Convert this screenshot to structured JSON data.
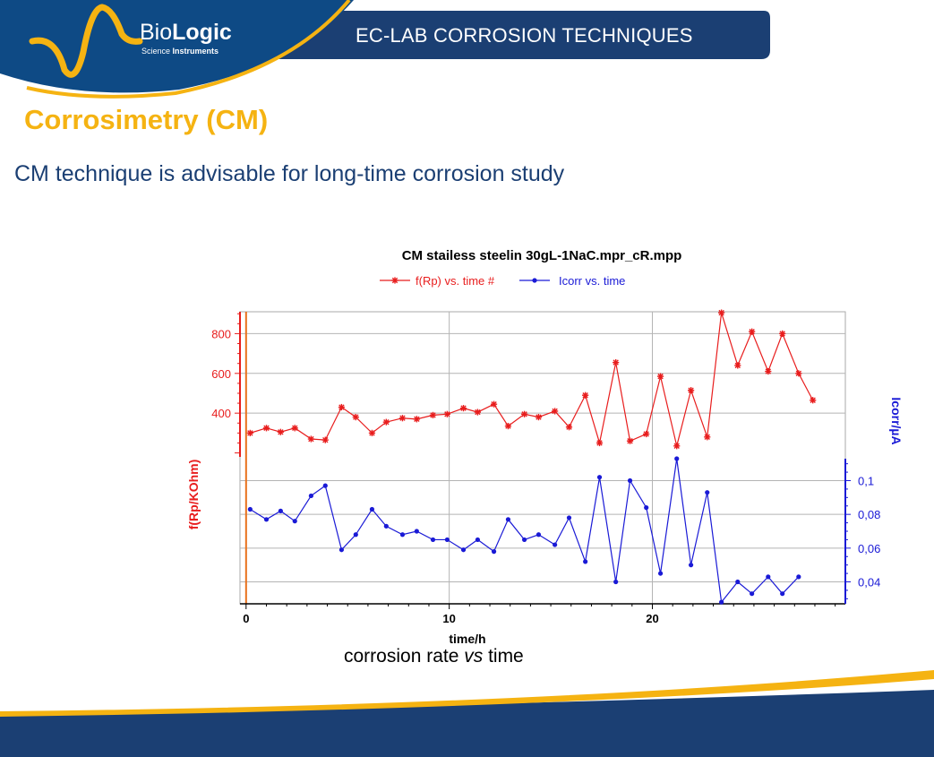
{
  "header": {
    "brand_name_part1": "Bio",
    "brand_name_part2": "Logic",
    "brand_sub_part1": "Science ",
    "brand_sub_part2": "Instruments",
    "title": "EC-LAB CORROSION TECHNIQUES"
  },
  "slide": {
    "title": "Corrosimetry (CM)",
    "subtitle": "CM technique is advisable for long-time corrosion study",
    "caption_part1": "corrosion rate ",
    "caption_part2": "vs",
    "caption_part3": " time"
  },
  "colors": {
    "navy": "#1b3f73",
    "brand_blue": "#0e4a85",
    "accent_yellow": "#f5b312",
    "series_red": "#e81d1d",
    "series_blue": "#1a1ad6",
    "axis_orange": "#e8711c"
  },
  "chart_data": {
    "type": "line",
    "title": "CM stailess steelin 30gL-1NaC.mpr_cR.mpp",
    "xlabel": "time/h",
    "xlim": [
      -0.3,
      29.5
    ],
    "xticks": [
      0,
      10,
      20
    ],
    "grid": true,
    "legend_placement": "top-center",
    "series": [
      {
        "name": "f(Rp) vs. time #",
        "axis": "left",
        "ylabel": "f(Rp/KOhm)",
        "ylim": [
          180,
          910
        ],
        "yticks": [
          400,
          600,
          800
        ],
        "x": [
          0.2,
          1.0,
          1.7,
          2.4,
          3.2,
          3.9,
          4.7,
          5.4,
          6.2,
          6.9,
          7.7,
          8.4,
          9.2,
          9.9,
          10.7,
          11.4,
          12.2,
          12.9,
          13.7,
          14.4,
          15.2,
          15.9,
          16.7,
          17.4,
          18.2,
          18.9,
          19.7,
          20.4,
          21.2,
          21.9,
          22.7,
          23.4,
          24.2,
          24.9,
          25.7,
          26.4,
          27.2,
          27.9
        ],
        "y": [
          300,
          325,
          305,
          325,
          270,
          265,
          430,
          380,
          300,
          355,
          375,
          370,
          390,
          395,
          425,
          405,
          445,
          335,
          395,
          380,
          410,
          330,
          490,
          250,
          655,
          260,
          295,
          585,
          235,
          515,
          280,
          905,
          640,
          810,
          610,
          800,
          600,
          465
        ]
      },
      {
        "name": "Icorr vs. time",
        "axis": "right",
        "ylabel": "Icorr/µA",
        "ylim": [
          0.027,
          0.113
        ],
        "yticks": [
          "0,04",
          "0,06",
          "0,08",
          "0,1"
        ],
        "x": [
          0.2,
          1.0,
          1.7,
          2.4,
          3.2,
          3.9,
          4.7,
          5.4,
          6.2,
          6.9,
          7.7,
          8.4,
          9.2,
          9.9,
          10.7,
          11.4,
          12.2,
          12.9,
          13.7,
          14.4,
          15.2,
          15.9,
          16.7,
          17.4,
          18.2,
          18.9,
          19.7,
          20.4,
          21.2,
          21.9,
          22.7,
          23.4,
          24.2,
          24.9,
          25.7,
          26.4,
          27.2
        ],
        "y": [
          0.083,
          0.077,
          0.082,
          0.076,
          0.091,
          0.097,
          0.059,
          0.068,
          0.083,
          0.073,
          0.068,
          0.07,
          0.065,
          0.065,
          0.059,
          0.065,
          0.058,
          0.077,
          0.065,
          0.068,
          0.062,
          0.078,
          0.052,
          0.102,
          0.04,
          0.1,
          0.084,
          0.045,
          0.113,
          0.05,
          0.093,
          0.028,
          0.04,
          0.033,
          0.043,
          0.033,
          0.043
        ]
      }
    ]
  }
}
